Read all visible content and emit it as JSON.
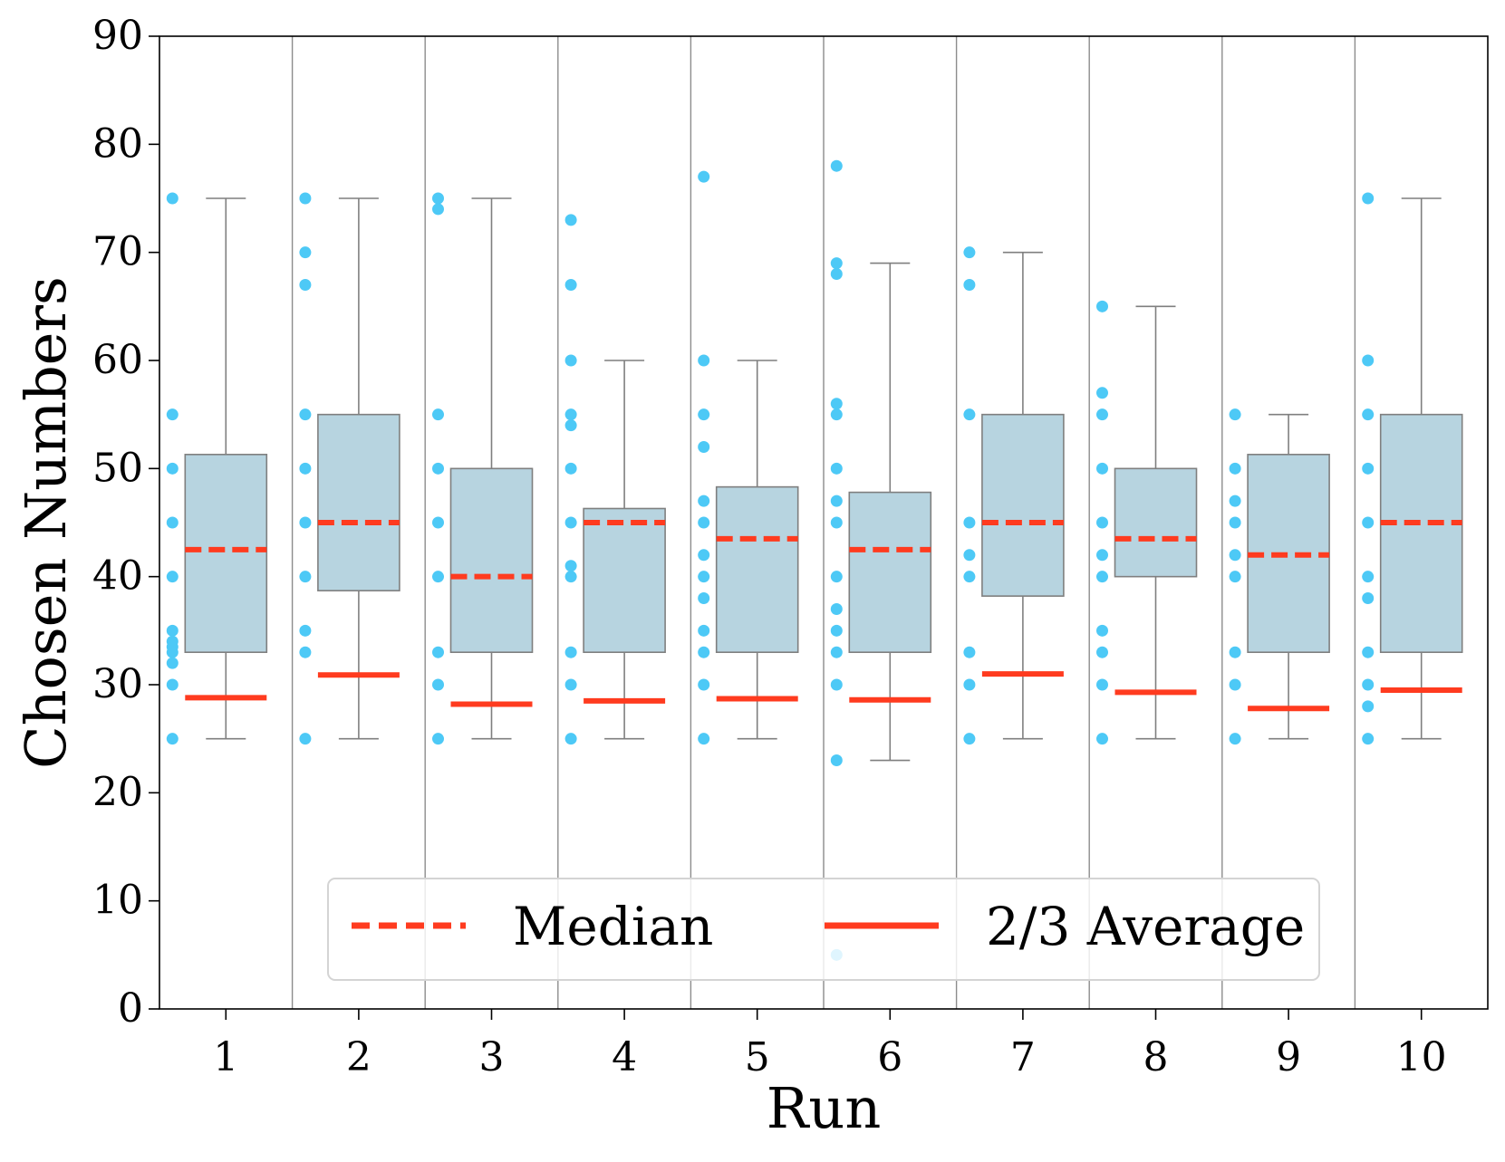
{
  "chart_data": {
    "type": "box",
    "xlabel": "Run",
    "ylabel": "Chosen Numbers",
    "ylim": [
      0,
      90
    ],
    "yticks": [
      0,
      10,
      20,
      30,
      40,
      50,
      60,
      70,
      80,
      90
    ],
    "categories": [
      "1",
      "2",
      "3",
      "4",
      "5",
      "6",
      "7",
      "8",
      "9",
      "10"
    ],
    "legend": {
      "placement": "lower-center",
      "entries": [
        {
          "label": "Median",
          "style": "dashed"
        },
        {
          "label": "2/3 Average",
          "style": "solid"
        }
      ]
    },
    "colors": {
      "box_fill": "#b7d4e0",
      "box_edge": "#7f7f7f",
      "points": "#4dc9f6",
      "median": "#ff3b1f",
      "two_thirds_avg": "#ff3b1f",
      "separator": "#8c8c8c"
    },
    "runs": [
      {
        "run": "1",
        "whisker_low": 25,
        "q1": 33,
        "median": 42.5,
        "q3": 51.3,
        "whisker_high": 75,
        "two_thirds_avg": 28.8,
        "points": [
          75,
          55,
          50,
          45,
          40,
          35,
          34,
          33.5,
          33,
          32,
          30,
          25
        ]
      },
      {
        "run": "2",
        "whisker_low": 25,
        "q1": 38.7,
        "median": 45,
        "q3": 55,
        "whisker_high": 75,
        "two_thirds_avg": 30.9,
        "points": [
          75,
          70,
          67,
          55,
          50,
          45,
          40,
          35,
          33,
          25
        ]
      },
      {
        "run": "3",
        "whisker_low": 25,
        "q1": 33,
        "median": 40,
        "q3": 50,
        "whisker_high": 75,
        "two_thirds_avg": 28.2,
        "points": [
          75,
          74,
          55,
          50,
          45,
          40,
          33,
          30,
          25
        ]
      },
      {
        "run": "4",
        "whisker_low": 25,
        "q1": 33,
        "median": 45,
        "q3": 46.3,
        "whisker_high": 60,
        "two_thirds_avg": 28.5,
        "points": [
          73,
          67,
          60,
          55,
          54,
          50,
          45,
          41,
          40,
          33,
          30,
          25
        ]
      },
      {
        "run": "5",
        "whisker_low": 25,
        "q1": 33,
        "median": 43.5,
        "q3": 48.3,
        "whisker_high": 60,
        "two_thirds_avg": 28.7,
        "points": [
          77,
          60,
          55,
          52,
          47,
          45,
          42,
          40,
          38,
          35,
          33,
          30,
          25
        ]
      },
      {
        "run": "6",
        "whisker_low": 23,
        "q1": 33,
        "median": 42.5,
        "q3": 47.8,
        "whisker_high": 69,
        "two_thirds_avg": 28.6,
        "points": [
          78,
          69,
          68,
          56,
          55,
          50,
          47,
          45,
          40,
          37,
          35,
          33,
          30,
          23,
          5
        ]
      },
      {
        "run": "7",
        "whisker_low": 25,
        "q1": 38.2,
        "median": 45,
        "q3": 55,
        "whisker_high": 70,
        "two_thirds_avg": 31.0,
        "points": [
          70,
          67,
          55,
          45,
          42,
          40,
          33,
          30,
          25
        ]
      },
      {
        "run": "8",
        "whisker_low": 25,
        "q1": 40,
        "median": 43.5,
        "q3": 50,
        "whisker_high": 65,
        "two_thirds_avg": 29.3,
        "points": [
          65,
          57,
          55,
          50,
          45,
          42,
          40,
          35,
          33,
          30,
          25
        ]
      },
      {
        "run": "9",
        "whisker_low": 25,
        "q1": 33,
        "median": 42,
        "q3": 51.3,
        "whisker_high": 55,
        "two_thirds_avg": 27.8,
        "points": [
          55,
          50,
          47,
          45,
          42,
          40,
          33,
          30,
          25
        ]
      },
      {
        "run": "10",
        "whisker_low": 25,
        "q1": 33,
        "median": 45,
        "q3": 55,
        "whisker_high": 75,
        "two_thirds_avg": 29.5,
        "points": [
          75,
          60,
          55,
          50,
          45,
          40,
          38,
          33,
          30,
          28,
          25
        ]
      }
    ]
  }
}
